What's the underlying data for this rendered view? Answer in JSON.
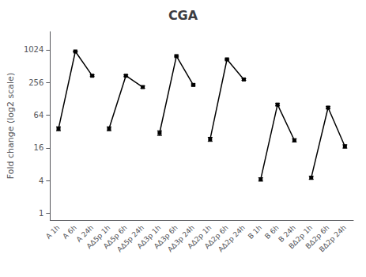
{
  "chart_data": {
    "type": "line",
    "title": "CGA",
    "ylabel": "Fold change (log2 scale)",
    "categories": [
      "A 1h",
      "A 6h",
      "A 24h",
      "AΔ5p 1h",
      "AΔ5p 6h",
      "AΔ5p 24h",
      "AΔ3p 1h",
      "AΔ3p 6h",
      "AΔ3p 24h",
      "AΔ2p 1h",
      "AΔ2p 6h",
      "AΔ2p 24h",
      "B 1h",
      "B 6h",
      "B 24h",
      "BΔ2p 1h",
      "BΔ2p 6h",
      "BΔ2p 24h"
    ],
    "series": [
      {
        "color": "black",
        "marker": "square",
        "values": [
          36,
          950,
          340,
          null,
          null,
          null,
          null,
          null,
          null,
          null,
          null,
          null,
          null,
          null,
          null,
          null,
          null,
          null
        ],
        "errors": [
          3,
          20,
          12,
          null,
          null,
          null,
          null,
          null,
          null,
          null,
          null,
          null,
          null,
          null,
          null,
          null,
          null,
          null
        ]
      },
      {
        "color": "black",
        "marker": "square",
        "values": [
          null,
          null,
          null,
          36,
          340,
          210,
          null,
          null,
          null,
          null,
          null,
          null,
          null,
          null,
          null,
          null,
          null,
          null
        ],
        "errors": [
          null,
          null,
          null,
          3,
          12,
          10,
          null,
          null,
          null,
          null,
          null,
          null,
          null,
          null,
          null,
          null,
          null,
          null
        ]
      },
      {
        "color": "black",
        "marker": "square",
        "values": [
          null,
          null,
          null,
          null,
          null,
          null,
          30,
          780,
          230,
          null,
          null,
          null,
          null,
          null,
          null,
          null,
          null,
          null
        ],
        "errors": [
          null,
          null,
          null,
          null,
          null,
          null,
          3,
          25,
          10,
          null,
          null,
          null,
          null,
          null,
          null,
          null,
          null,
          null
        ]
      },
      {
        "color": "black",
        "marker": "square",
        "values": [
          null,
          null,
          null,
          null,
          null,
          null,
          null,
          null,
          null,
          23,
          680,
          290,
          null,
          null,
          null,
          null,
          null,
          null
        ],
        "errors": [
          null,
          null,
          null,
          null,
          null,
          null,
          null,
          null,
          null,
          2,
          20,
          10,
          null,
          null,
          null,
          null,
          null,
          null
        ]
      },
      {
        "color": "black",
        "marker": "square",
        "values": [
          null,
          null,
          null,
          null,
          null,
          null,
          null,
          null,
          null,
          null,
          null,
          null,
          4.2,
          100,
          22,
          null,
          null,
          null
        ],
        "errors": [
          null,
          null,
          null,
          null,
          null,
          null,
          null,
          null,
          null,
          null,
          null,
          null,
          0.3,
          5,
          1.5,
          null,
          null,
          null
        ]
      },
      {
        "color": "black",
        "marker": "square",
        "values": [
          null,
          null,
          null,
          null,
          null,
          null,
          null,
          null,
          null,
          null,
          null,
          null,
          null,
          null,
          null,
          4.5,
          88,
          17
        ],
        "errors": [
          null,
          null,
          null,
          null,
          null,
          null,
          null,
          null,
          null,
          null,
          null,
          null,
          null,
          null,
          null,
          0.3,
          4,
          1.2
        ]
      }
    ],
    "log": "y",
    "ylim": [
      0.75,
      2200
    ],
    "yticks": [
      1,
      4,
      16,
      64,
      256,
      1024
    ],
    "grid": false
  }
}
